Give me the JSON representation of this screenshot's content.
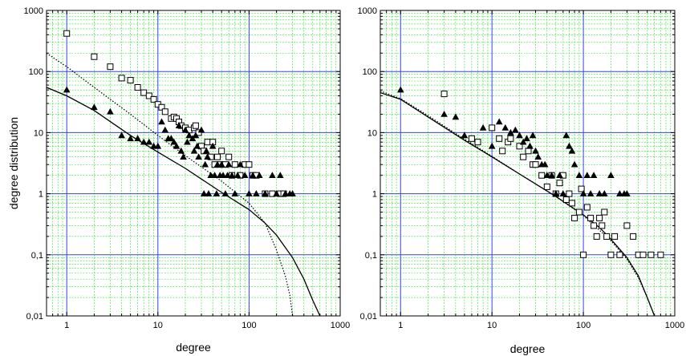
{
  "chart_data": [
    {
      "type": "scatter",
      "xlabel": "degree",
      "ylabel": "degree distribution",
      "xscale": "log",
      "yscale": "log",
      "xlim": [
        0.6,
        1000
      ],
      "ylim": [
        0.01,
        1000
      ],
      "x_ticks": [
        "1",
        "10",
        "100",
        "1000"
      ],
      "y_ticks": [
        "0,01",
        "0,1",
        "1",
        "10",
        "100",
        "1000"
      ],
      "grid": true,
      "colors": {
        "major_grid": "#3344ee",
        "minor_grid": "#33dd33",
        "markers": "#000000"
      },
      "series": [
        {
          "marker": "square",
          "points": [
            [
              1,
              420
            ],
            [
              2,
              175
            ],
            [
              3,
              120
            ],
            [
              4,
              78
            ],
            [
              5,
              72
            ],
            [
              6,
              55
            ],
            [
              7,
              45
            ],
            [
              8,
              40
            ],
            [
              9,
              35
            ],
            [
              10,
              29
            ],
            [
              11,
              26
            ],
            [
              12,
              22
            ],
            [
              14,
              17
            ],
            [
              15,
              18
            ],
            [
              16,
              17
            ],
            [
              17,
              15
            ],
            [
              18,
              13
            ],
            [
              20,
              12
            ],
            [
              22,
              11
            ],
            [
              25,
              12
            ],
            [
              26,
              13
            ],
            [
              28,
              10
            ],
            [
              30,
              6
            ],
            [
              32,
              5
            ],
            [
              35,
              7
            ],
            [
              38,
              4
            ],
            [
              40,
              7
            ],
            [
              42,
              3
            ],
            [
              45,
              4
            ],
            [
              48,
              3
            ],
            [
              50,
              5
            ],
            [
              55,
              3
            ],
            [
              60,
              4
            ],
            [
              65,
              2
            ],
            [
              70,
              3
            ],
            [
              80,
              2
            ],
            [
              90,
              3
            ],
            [
              100,
              3
            ],
            [
              110,
              2
            ],
            [
              120,
              2
            ],
            [
              150,
              1
            ],
            [
              180,
              1
            ],
            [
              220,
              1
            ],
            [
              240,
              1
            ]
          ]
        },
        {
          "marker": "triangle",
          "points": [
            [
              1,
              50
            ],
            [
              2,
              26
            ],
            [
              3,
              22
            ],
            [
              4,
              9
            ],
            [
              5,
              8
            ],
            [
              6,
              8
            ],
            [
              7,
              7
            ],
            [
              8,
              7
            ],
            [
              9,
              6
            ],
            [
              10,
              6
            ],
            [
              11,
              15
            ],
            [
              12,
              11
            ],
            [
              13,
              8
            ],
            [
              14,
              8
            ],
            [
              15,
              7
            ],
            [
              16,
              6
            ],
            [
              17,
              13
            ],
            [
              18,
              5
            ],
            [
              19,
              4
            ],
            [
              20,
              11
            ],
            [
              21,
              7
            ],
            [
              22,
              9
            ],
            [
              24,
              8
            ],
            [
              25,
              5
            ],
            [
              26,
              9
            ],
            [
              27,
              6
            ],
            [
              28,
              4
            ],
            [
              30,
              11
            ],
            [
              32,
              1
            ],
            [
              33,
              3
            ],
            [
              34,
              5
            ],
            [
              35,
              4
            ],
            [
              36,
              1
            ],
            [
              38,
              2
            ],
            [
              40,
              6
            ],
            [
              42,
              2
            ],
            [
              44,
              1
            ],
            [
              45,
              3
            ],
            [
              48,
              2
            ],
            [
              50,
              3
            ],
            [
              52,
              2
            ],
            [
              55,
              1
            ],
            [
              58,
              2
            ],
            [
              60,
              3
            ],
            [
              65,
              2
            ],
            [
              70,
              1
            ],
            [
              75,
              2
            ],
            [
              80,
              3
            ],
            [
              90,
              2
            ],
            [
              100,
              1
            ],
            [
              110,
              2
            ],
            [
              120,
              1
            ],
            [
              130,
              2
            ],
            [
              150,
              1
            ],
            [
              180,
              2
            ],
            [
              200,
              1
            ],
            [
              220,
              2
            ],
            [
              250,
              1
            ],
            [
              280,
              1
            ],
            [
              300,
              1
            ]
          ]
        }
      ],
      "fit_lines": [
        {
          "style": "solid",
          "points": [
            [
              0.6,
              55
            ],
            [
              1,
              40
            ],
            [
              2,
              23
            ],
            [
              5,
              9
            ],
            [
              10,
              4.8
            ],
            [
              20,
              2.6
            ],
            [
              50,
              1.05
            ],
            [
              100,
              0.55
            ],
            [
              150,
              0.33
            ],
            [
              200,
              0.21
            ],
            [
              300,
              0.09
            ],
            [
              400,
              0.04
            ],
            [
              500,
              0.018
            ],
            [
              600,
              0.01
            ]
          ]
        },
        {
          "style": "dotted",
          "points": [
            [
              0.6,
              200
            ],
            [
              1,
              120
            ],
            [
              2,
              55
            ],
            [
              5,
              20
            ],
            [
              10,
              9
            ],
            [
              20,
              4.2
            ],
            [
              50,
              1.6
            ],
            [
              100,
              0.7
            ],
            [
              150,
              0.33
            ],
            [
              200,
              0.12
            ],
            [
              250,
              0.045
            ],
            [
              280,
              0.022
            ],
            [
              300,
              0.01
            ]
          ]
        }
      ]
    },
    {
      "type": "scatter",
      "xlabel": "degree",
      "ylabel": "",
      "xscale": "log",
      "yscale": "log",
      "xlim": [
        0.6,
        1000
      ],
      "ylim": [
        0.01,
        1000
      ],
      "x_ticks": [
        "1",
        "10",
        "100",
        "1000"
      ],
      "y_ticks": [
        "0,01",
        "0,1",
        "1",
        "10",
        "100",
        "1000"
      ],
      "grid": true,
      "colors": {
        "major_grid": "#3344ee",
        "minor_grid": "#33dd33",
        "markers": "#000000"
      },
      "series": [
        {
          "marker": "square",
          "points": [
            [
              3,
              43
            ],
            [
              6,
              8
            ],
            [
              7,
              7
            ],
            [
              10,
              12
            ],
            [
              12,
              8
            ],
            [
              13,
              5
            ],
            [
              15,
              7
            ],
            [
              16,
              8
            ],
            [
              20,
              6
            ],
            [
              22,
              4
            ],
            [
              25,
              5
            ],
            [
              28,
              3
            ],
            [
              30,
              3
            ],
            [
              35,
              2
            ],
            [
              40,
              1.3
            ],
            [
              45,
              2
            ],
            [
              50,
              1
            ],
            [
              55,
              1.5
            ],
            [
              60,
              2
            ],
            [
              65,
              0.8
            ],
            [
              70,
              1
            ],
            [
              75,
              0.7
            ],
            [
              80,
              0.4
            ],
            [
              90,
              0.5
            ],
            [
              95,
              1.2
            ],
            [
              100,
              0.1
            ],
            [
              110,
              0.6
            ],
            [
              120,
              0.4
            ],
            [
              130,
              0.3
            ],
            [
              140,
              0.2
            ],
            [
              150,
              0.4
            ],
            [
              160,
              0.3
            ],
            [
              170,
              0.5
            ],
            [
              180,
              0.2
            ],
            [
              200,
              0.1
            ],
            [
              220,
              0.2
            ],
            [
              250,
              0.1
            ],
            [
              300,
              0.3
            ],
            [
              350,
              0.2
            ],
            [
              400,
              0.1
            ],
            [
              450,
              0.1
            ],
            [
              550,
              0.1
            ],
            [
              700,
              0.1
            ]
          ]
        },
        {
          "marker": "triangle",
          "points": [
            [
              1,
              50
            ],
            [
              3,
              20
            ],
            [
              4,
              18
            ],
            [
              5,
              9
            ],
            [
              8,
              12
            ],
            [
              10,
              6
            ],
            [
              12,
              15
            ],
            [
              14,
              12
            ],
            [
              16,
              10
            ],
            [
              18,
              11
            ],
            [
              20,
              9
            ],
            [
              22,
              7
            ],
            [
              24,
              8
            ],
            [
              26,
              6
            ],
            [
              28,
              9
            ],
            [
              30,
              5
            ],
            [
              32,
              4
            ],
            [
              35,
              3
            ],
            [
              38,
              3
            ],
            [
              40,
              2
            ],
            [
              45,
              2
            ],
            [
              50,
              1
            ],
            [
              55,
              2
            ],
            [
              60,
              1
            ],
            [
              65,
              9
            ],
            [
              70,
              6
            ],
            [
              75,
              5
            ],
            [
              80,
              3
            ],
            [
              90,
              2
            ],
            [
              100,
              1
            ],
            [
              110,
              2
            ],
            [
              120,
              1
            ],
            [
              130,
              2
            ],
            [
              150,
              1
            ],
            [
              170,
              1
            ],
            [
              200,
              2
            ],
            [
              250,
              1
            ],
            [
              280,
              1
            ],
            [
              300,
              1
            ]
          ]
        }
      ],
      "fit_lines": [
        {
          "style": "solid",
          "points": [
            [
              0.6,
              45
            ],
            [
              1,
              35
            ],
            [
              2,
              18
            ],
            [
              5,
              7.5
            ],
            [
              10,
              4
            ],
            [
              20,
              2.1
            ],
            [
              50,
              0.9
            ],
            [
              100,
              0.45
            ],
            [
              150,
              0.28
            ],
            [
              200,
              0.18
            ],
            [
              300,
              0.09
            ],
            [
              400,
              0.045
            ],
            [
              500,
              0.02
            ],
            [
              600,
              0.01
            ]
          ]
        },
        {
          "style": "dotted",
          "points": [
            [
              0.6,
              48
            ],
            [
              1,
              36
            ],
            [
              2,
              19
            ],
            [
              5,
              7.8
            ],
            [
              10,
              4.1
            ],
            [
              20,
              2.1
            ],
            [
              50,
              0.9
            ],
            [
              100,
              0.44
            ],
            [
              200,
              0.17
            ],
            [
              300,
              0.085
            ],
            [
              400,
              0.042
            ],
            [
              500,
              0.02
            ],
            [
              600,
              0.01
            ]
          ]
        }
      ]
    }
  ]
}
